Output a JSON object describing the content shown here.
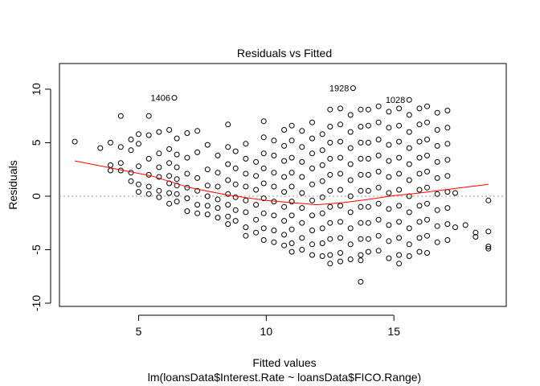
{
  "chart_data": {
    "type": "scatter",
    "title": "Residuals vs Fitted",
    "xlabel": "Fitted values",
    "subtitle": "lm(loansData$Interest.Rate ~ loansData$FICO.Range)",
    "ylabel": "Residuals",
    "xlim": [
      1.9,
      19.4
    ],
    "ylim": [
      -10.3,
      12.4
    ],
    "x_ticks": [
      5,
      10,
      15
    ],
    "y_ticks": [
      -10,
      -5,
      0,
      5,
      10
    ],
    "zero_line": 0,
    "point_color": "#000000",
    "smooth_color": "#ff0000",
    "reference_line_color": "#999999",
    "labeled_points": [
      {
        "label": "1406",
        "x": 6.4,
        "y": 9.2
      },
      {
        "label": "1928",
        "x": 13.4,
        "y": 10.1
      },
      {
        "label": "1028",
        "x": 15.6,
        "y": 9.0
      }
    ],
    "smooth": [
      {
        "x": 2.5,
        "y": 3.3
      },
      {
        "x": 4,
        "y": 2.6
      },
      {
        "x": 5.5,
        "y": 1.9
      },
      {
        "x": 7,
        "y": 0.8
      },
      {
        "x": 8.5,
        "y": 0.1
      },
      {
        "x": 10,
        "y": -0.4
      },
      {
        "x": 11,
        "y": -0.6
      },
      {
        "x": 12,
        "y": -0.8
      },
      {
        "x": 13,
        "y": -0.6
      },
      {
        "x": 14,
        "y": -0.3
      },
      {
        "x": 15,
        "y": 0.05
      },
      {
        "x": 16,
        "y": 0.3
      },
      {
        "x": 17,
        "y": 0.6
      },
      {
        "x": 18,
        "y": 0.9
      },
      {
        "x": 18.7,
        "y": 1.1
      }
    ],
    "columns": [
      {
        "x": 2.5,
        "ys": [
          5.1
        ]
      },
      {
        "x": 3.5,
        "ys": [
          4.5
        ]
      },
      {
        "x": 3.9,
        "ys": [
          5.0,
          2.9,
          2.4
        ]
      },
      {
        "x": 4.3,
        "ys": [
          7.5,
          4.6,
          3.1,
          2.4
        ]
      },
      {
        "x": 4.7,
        "ys": [
          5.3,
          4.3,
          2.2,
          1.4
        ]
      },
      {
        "x": 5.0,
        "ys": [
          5.8,
          4.9,
          2.8,
          1.1,
          0.4
        ]
      },
      {
        "x": 5.4,
        "ys": [
          7.5,
          5.7,
          3.5,
          2.0,
          0.9,
          0.2
        ]
      },
      {
        "x": 5.8,
        "ys": [
          6.0,
          4.0,
          2.7,
          1.8,
          0.5,
          -0.1
        ]
      },
      {
        "x": 6.2,
        "ys": [
          6.2,
          4.4,
          3.1,
          1.9,
          1.2,
          0.3,
          -0.7
        ]
      },
      {
        "x": 6.5,
        "ys": [
          5.4,
          3.9,
          2.7,
          1.6,
          1.0,
          0.2,
          -0.5
        ]
      },
      {
        "x": 6.9,
        "ys": [
          5.9,
          3.6,
          2.1,
          0.8,
          -0.2,
          -1.4
        ]
      },
      {
        "x": 7.3,
        "ys": [
          6.1,
          4.1,
          1.7,
          0.5,
          -0.8,
          -1.6
        ]
      },
      {
        "x": 7.7,
        "ys": [
          4.8,
          2.5,
          1.0,
          0.0,
          -0.9,
          -1.7
        ]
      },
      {
        "x": 8.1,
        "ys": [
          3.8,
          2.2,
          0.9,
          -0.3,
          -1.1,
          -2.0
        ]
      },
      {
        "x": 8.5,
        "ys": [
          6.7,
          4.6,
          3.0,
          1.5,
          0.2,
          -0.8,
          -1.9,
          -2.6
        ]
      },
      {
        "x": 8.8,
        "ys": [
          4.2,
          2.6,
          1.1,
          -0.1,
          -1.3,
          -2.3
        ]
      },
      {
        "x": 9.2,
        "ys": [
          4.9,
          3.5,
          2.1,
          0.9,
          -0.4,
          -1.5,
          -2.9,
          -3.7
        ]
      },
      {
        "x": 9.6,
        "ys": [
          3.2,
          1.9,
          0.6,
          -0.8,
          -2.2,
          -3.4
        ]
      },
      {
        "x": 9.9,
        "ys": [
          7.0,
          5.5,
          4.0,
          2.6,
          1.2,
          -0.2,
          -1.6,
          -3.0,
          -4.1
        ]
      },
      {
        "x": 10.3,
        "ys": [
          5.2,
          3.8,
          2.2,
          0.9,
          -0.5,
          -1.8,
          -3.2,
          -4.3
        ]
      },
      {
        "x": 10.7,
        "ys": [
          6.2,
          4.7,
          3.3,
          1.8,
          0.4,
          -1.0,
          -2.3,
          -3.6,
          -4.6
        ]
      },
      {
        "x": 11.0,
        "ys": [
          6.6,
          5.2,
          3.6,
          2.2,
          0.9,
          -0.5,
          -1.8,
          -3.1,
          -4.4,
          -5.2
        ]
      },
      {
        "x": 11.4,
        "ys": [
          6.1,
          4.6,
          3.2,
          1.8,
          0.3,
          -1.1,
          -2.5,
          -3.9,
          -5.0
        ]
      },
      {
        "x": 11.8,
        "ys": [
          6.9,
          5.4,
          4.0,
          2.6,
          1.1,
          -0.4,
          -1.8,
          -3.2,
          -4.5,
          -5.5
        ]
      },
      {
        "x": 12.2,
        "ys": [
          5.8,
          4.3,
          2.9,
          1.4,
          -0.1,
          -1.6,
          -3.0,
          -4.4,
          -5.6
        ]
      },
      {
        "x": 12.5,
        "ys": [
          8.1,
          6.5,
          5.0,
          3.5,
          2.0,
          0.5,
          -1.0,
          -2.5,
          -4.0,
          -5.5,
          -6.3
        ]
      },
      {
        "x": 12.9,
        "ys": [
          8.2,
          6.7,
          5.1,
          3.6,
          2.1,
          0.6,
          -0.9,
          -2.4,
          -3.9,
          -5.3,
          -6.1
        ]
      },
      {
        "x": 13.3,
        "ys": [
          7.6,
          6.0,
          4.5,
          3.0,
          1.5,
          0.0,
          -1.5,
          -3.0,
          -4.5,
          -5.9
        ]
      },
      {
        "x": 13.7,
        "ys": [
          8.1,
          6.5,
          5.0,
          3.5,
          2.0,
          0.5,
          -1.0,
          -2.5,
          -4.0,
          -5.5,
          -6.0,
          -8.0
        ]
      },
      {
        "x": 14.0,
        "ys": [
          8.1,
          6.6,
          5.0,
          3.5,
          2.0,
          0.5,
          -1.0,
          -2.5,
          -4.0,
          -5.2
        ]
      },
      {
        "x": 14.4,
        "ys": [
          8.4,
          6.9,
          5.3,
          3.8,
          2.3,
          0.8,
          -0.7,
          -2.2,
          -3.7,
          -5.1
        ]
      },
      {
        "x": 14.8,
        "ys": [
          7.9,
          6.4,
          4.8,
          3.3,
          1.8,
          0.3,
          -1.2,
          -2.7,
          -4.2,
          -5.8
        ]
      },
      {
        "x": 15.2,
        "ys": [
          8.2,
          6.6,
          5.1,
          3.6,
          2.1,
          0.6,
          -0.9,
          -2.4,
          -3.9,
          -5.5,
          -6.3
        ]
      },
      {
        "x": 15.6,
        "ys": [
          7.6,
          6.0,
          4.5,
          3.0,
          1.5,
          0.0,
          -1.5,
          -3.0,
          -4.5,
          -5.6
        ]
      },
      {
        "x": 16.0,
        "ys": [
          8.2,
          6.7,
          5.1,
          3.6,
          2.1,
          0.6,
          -0.9,
          -2.4,
          -3.9,
          -5.2
        ]
      },
      {
        "x": 16.3,
        "ys": [
          8.4,
          6.9,
          5.3,
          3.8,
          2.3,
          0.8,
          -0.7,
          -2.2,
          -3.7,
          -5.3
        ]
      },
      {
        "x": 16.7,
        "ys": [
          7.8,
          6.2,
          4.7,
          3.2,
          1.7,
          0.2,
          -1.3,
          -2.8,
          -4.3
        ]
      },
      {
        "x": 17.1,
        "ys": [
          8.0,
          6.4,
          4.9,
          3.4,
          1.9,
          0.4,
          -1.1,
          -2.6,
          -4.1
        ]
      },
      {
        "x": 17.4,
        "ys": [
          0.3,
          -2.9
        ]
      },
      {
        "x": 17.8,
        "ys": [
          -2.7
        ]
      },
      {
        "x": 18.2,
        "ys": [
          -3.4,
          -3.8
        ]
      },
      {
        "x": 18.7,
        "ys": [
          -0.4,
          -3.3,
          -4.7,
          -4.9
        ]
      }
    ]
  }
}
